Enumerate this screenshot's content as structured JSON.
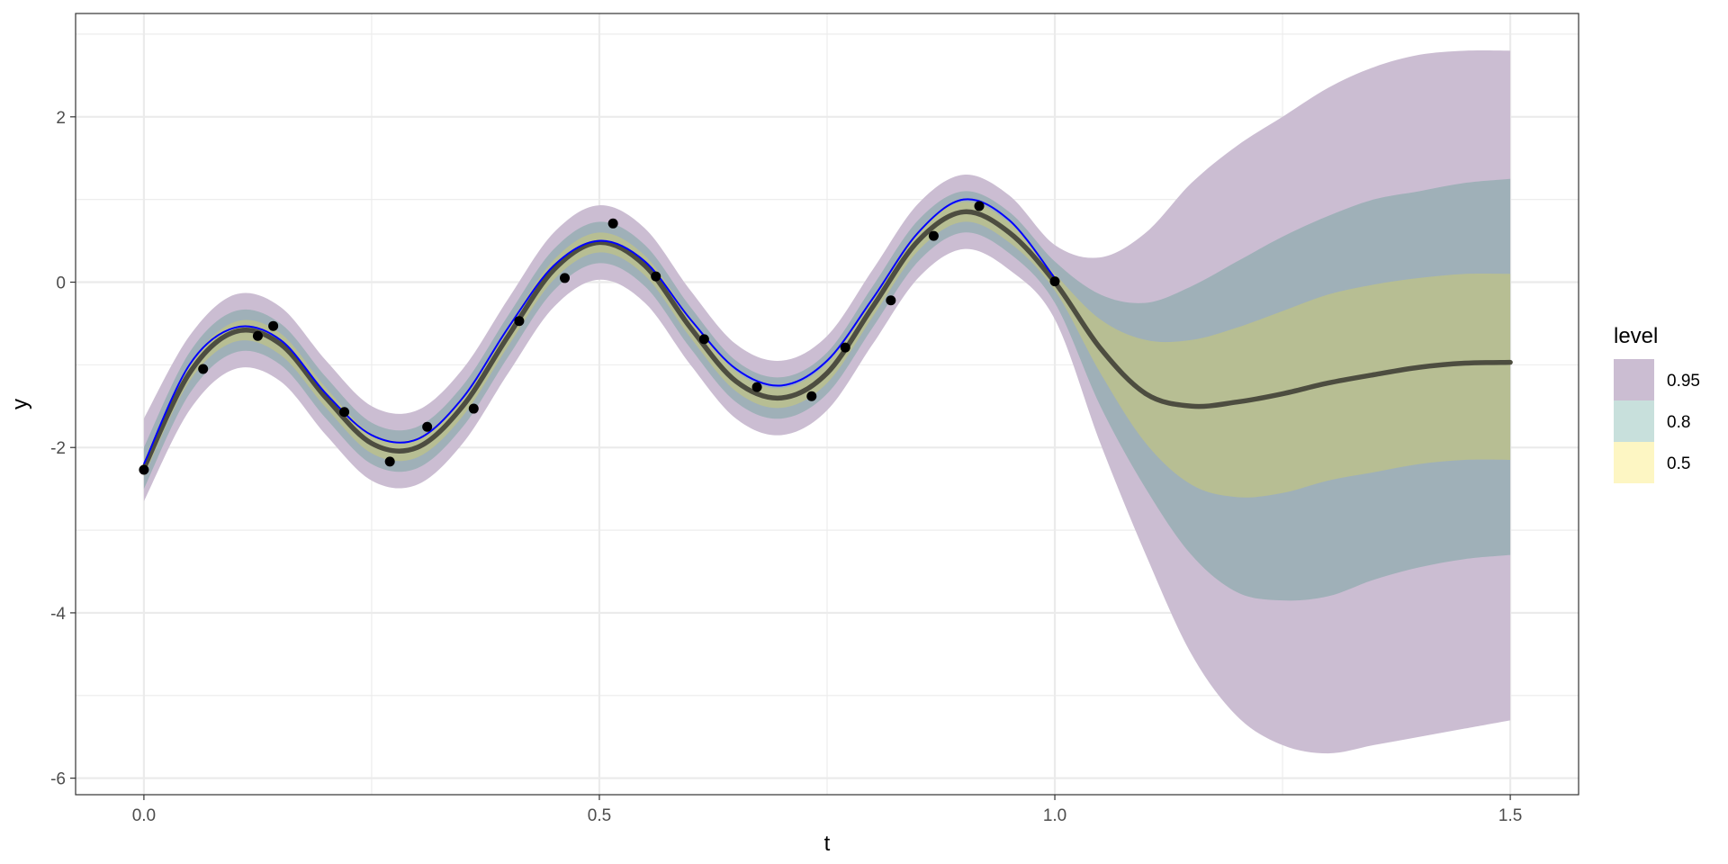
{
  "chart_data": {
    "type": "line",
    "title": "",
    "xlabel": "t",
    "ylabel": "y",
    "xlim": [
      -0.075,
      1.575
    ],
    "ylim": [
      -6.2,
      3.25
    ],
    "x_ticks": [
      0.0,
      0.5,
      1.0,
      1.5
    ],
    "x_tick_labels": [
      "0.0",
      "0.5",
      "1.0",
      "1.5"
    ],
    "y_ticks": [
      -6,
      -4,
      -2,
      0,
      2
    ],
    "y_tick_labels": [
      "-6",
      "-4",
      "-2",
      "0",
      "2"
    ],
    "grid": true,
    "legend": {
      "title": "level",
      "position": "right",
      "entries": [
        {
          "label": "0.95",
          "color": "#cbbdd2"
        },
        {
          "label": "0.8",
          "color": "#c8e0dc"
        },
        {
          "label": "0.5",
          "color": "#fdf6c3"
        }
      ]
    },
    "colors": {
      "band_95": "#cbbdd2",
      "band_80": "#9fb0b8",
      "band_50": "#b7be93",
      "median": "#4d4d40",
      "true_curve": "#0000ff",
      "points": "#000000"
    },
    "median_curve": {
      "x": [
        0.0,
        0.05,
        0.1,
        0.15,
        0.2,
        0.25,
        0.3,
        0.35,
        0.4,
        0.45,
        0.5,
        0.55,
        0.6,
        0.65,
        0.7,
        0.75,
        0.8,
        0.85,
        0.9,
        0.95,
        1.0,
        1.05,
        1.1,
        1.15,
        1.2,
        1.25,
        1.3,
        1.35,
        1.4,
        1.45,
        1.5
      ],
      "y": [
        -2.25,
        -1.1,
        -0.6,
        -0.75,
        -1.4,
        -1.95,
        -2.0,
        -1.5,
        -0.65,
        0.15,
        0.48,
        0.2,
        -0.55,
        -1.2,
        -1.4,
        -1.1,
        -0.3,
        0.5,
        0.85,
        0.6,
        0.0,
        -0.8,
        -1.35,
        -1.5,
        -1.45,
        -1.35,
        -1.22,
        -1.12,
        -1.03,
        -0.98,
        -0.97
      ]
    },
    "true_curve": {
      "x": [
        0.0,
        0.05,
        0.1,
        0.15,
        0.2,
        0.25,
        0.3,
        0.35,
        0.4,
        0.45,
        0.5,
        0.55,
        0.6,
        0.65,
        0.7,
        0.75,
        0.8,
        0.85,
        0.9,
        0.95,
        1.0
      ],
      "y": [
        -2.2,
        -1.0,
        -0.55,
        -0.7,
        -1.35,
        -1.85,
        -1.9,
        -1.4,
        -0.55,
        0.2,
        0.5,
        0.25,
        -0.45,
        -1.05,
        -1.25,
        -0.95,
        -0.2,
        0.6,
        1.0,
        0.75,
        0.05
      ]
    },
    "bands": [
      {
        "level": "0.95",
        "x": [
          0.0,
          0.05,
          0.1,
          0.15,
          0.2,
          0.25,
          0.3,
          0.35,
          0.4,
          0.45,
          0.5,
          0.55,
          0.6,
          0.65,
          0.7,
          0.75,
          0.8,
          0.85,
          0.9,
          0.95,
          1.0,
          1.05,
          1.1,
          1.15,
          1.2,
          1.25,
          1.3,
          1.35,
          1.4,
          1.45,
          1.5
        ],
        "lower": [
          -2.65,
          -1.55,
          -1.05,
          -1.2,
          -1.85,
          -2.4,
          -2.45,
          -1.95,
          -1.1,
          -0.3,
          0.03,
          -0.25,
          -1.0,
          -1.65,
          -1.85,
          -1.55,
          -0.75,
          0.05,
          0.4,
          0.15,
          -0.45,
          -1.95,
          -3.3,
          -4.5,
          -5.25,
          -5.6,
          -5.7,
          -5.6,
          -5.5,
          -5.4,
          -5.3
        ],
        "upper": [
          -1.65,
          -0.65,
          -0.15,
          -0.3,
          -0.95,
          -1.5,
          -1.55,
          -1.05,
          -0.2,
          0.6,
          0.93,
          0.65,
          -0.1,
          -0.75,
          -0.95,
          -0.65,
          0.15,
          0.95,
          1.3,
          1.05,
          0.45,
          0.3,
          0.6,
          1.2,
          1.65,
          2.0,
          2.35,
          2.6,
          2.75,
          2.8,
          2.8
        ]
      },
      {
        "level": "0.8",
        "x": [
          0.0,
          0.05,
          0.1,
          0.15,
          0.2,
          0.25,
          0.3,
          0.35,
          0.4,
          0.45,
          0.5,
          0.55,
          0.6,
          0.65,
          0.7,
          0.75,
          0.8,
          0.85,
          0.9,
          0.95,
          1.0,
          1.05,
          1.1,
          1.15,
          1.2,
          1.25,
          1.3,
          1.35,
          1.4,
          1.45,
          1.5
        ],
        "lower": [
          -2.5,
          -1.35,
          -0.85,
          -1.0,
          -1.65,
          -2.2,
          -2.25,
          -1.75,
          -0.9,
          -0.1,
          0.23,
          -0.05,
          -0.8,
          -1.45,
          -1.65,
          -1.35,
          -0.55,
          0.25,
          0.6,
          0.35,
          -0.25,
          -1.5,
          -2.5,
          -3.3,
          -3.75,
          -3.85,
          -3.8,
          -3.6,
          -3.45,
          -3.35,
          -3.3
        ],
        "upper": [
          -2.0,
          -0.85,
          -0.35,
          -0.5,
          -1.15,
          -1.7,
          -1.75,
          -1.25,
          -0.4,
          0.4,
          0.73,
          0.45,
          -0.3,
          -0.95,
          -1.15,
          -0.85,
          -0.05,
          0.75,
          1.1,
          0.85,
          0.25,
          -0.15,
          -0.25,
          -0.05,
          0.25,
          0.55,
          0.8,
          1.0,
          1.1,
          1.2,
          1.25
        ]
      },
      {
        "level": "0.5",
        "x": [
          0.0,
          0.05,
          0.1,
          0.15,
          0.2,
          0.25,
          0.3,
          0.35,
          0.4,
          0.45,
          0.5,
          0.55,
          0.6,
          0.65,
          0.7,
          0.75,
          0.8,
          0.85,
          0.9,
          0.95,
          1.0,
          1.05,
          1.1,
          1.15,
          1.2,
          1.25,
          1.3,
          1.35,
          1.4,
          1.45,
          1.5
        ],
        "lower": [
          -2.35,
          -1.2,
          -0.72,
          -0.88,
          -1.52,
          -2.07,
          -2.12,
          -1.62,
          -0.77,
          0.03,
          0.36,
          0.08,
          -0.67,
          -1.32,
          -1.52,
          -1.22,
          -0.42,
          0.38,
          0.73,
          0.48,
          -0.1,
          -1.1,
          -1.95,
          -2.45,
          -2.6,
          -2.55,
          -2.4,
          -2.3,
          -2.2,
          -2.15,
          -2.15
        ],
        "upper": [
          -2.15,
          -1.0,
          -0.48,
          -0.62,
          -1.28,
          -1.83,
          -1.88,
          -1.38,
          -0.53,
          0.27,
          0.6,
          0.32,
          -0.43,
          -1.08,
          -1.28,
          -0.98,
          -0.18,
          0.62,
          0.97,
          0.72,
          0.1,
          -0.45,
          -0.7,
          -0.7,
          -0.55,
          -0.35,
          -0.15,
          -0.03,
          0.05,
          0.1,
          0.1
        ]
      }
    ],
    "points": {
      "x": [
        0.0,
        0.065,
        0.125,
        0.142,
        0.22,
        0.27,
        0.311,
        0.362,
        0.412,
        0.462,
        0.515,
        0.562,
        0.615,
        0.673,
        0.733,
        0.77,
        0.82,
        0.867,
        0.917,
        1.0
      ],
      "y": [
        -2.27,
        -1.05,
        -0.65,
        -0.53,
        -1.57,
        -2.17,
        -1.75,
        -1.53,
        -0.47,
        0.05,
        0.71,
        0.07,
        -0.69,
        -1.27,
        -1.38,
        -0.79,
        -0.22,
        0.56,
        0.92,
        0.01
      ]
    }
  }
}
